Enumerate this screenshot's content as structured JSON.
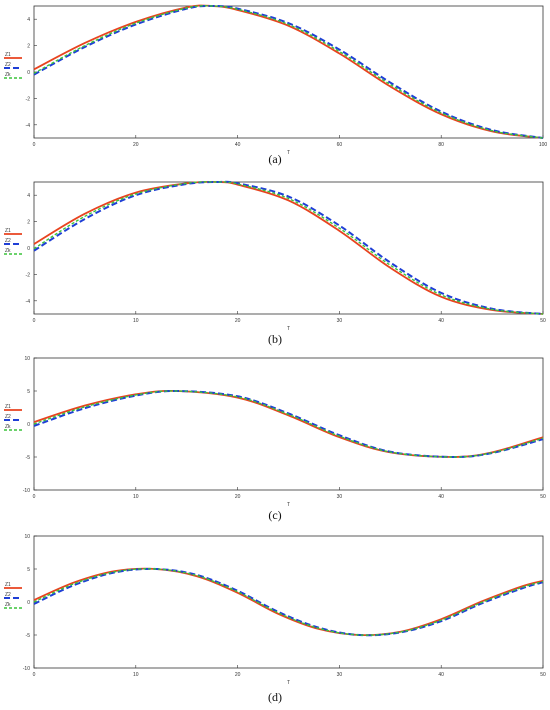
{
  "chart_data": [
    {
      "type": "line",
      "caption": "(a)",
      "xlabel": "T",
      "xlim": [
        0,
        100
      ],
      "ylim": [
        -5,
        5
      ],
      "xticks": [
        "0",
        "20",
        "40",
        "60",
        "80",
        "100"
      ],
      "yticks": [
        "-4",
        "-2",
        "0",
        "2",
        "4"
      ],
      "legend": [
        "Z1",
        "Z2",
        "Zk"
      ],
      "series": [
        {
          "name": "Z1",
          "x": [
            0,
            10,
            20,
            30,
            35,
            40,
            50,
            60,
            70,
            80,
            90,
            100
          ],
          "y": [
            0.2,
            2.2,
            3.8,
            4.9,
            5.0,
            4.7,
            3.5,
            1.4,
            -1.1,
            -3.2,
            -4.5,
            -5.0
          ]
        },
        {
          "name": "Z2",
          "x": [
            0,
            10,
            20,
            30,
            35,
            40,
            50,
            60,
            70,
            80,
            90,
            100
          ],
          "y": [
            -0.2,
            1.9,
            3.6,
            4.8,
            5.0,
            4.8,
            3.7,
            1.7,
            -0.8,
            -3.0,
            -4.4,
            -5.0
          ]
        },
        {
          "name": "Zk",
          "x": [
            0,
            10,
            20,
            30,
            35,
            40,
            50,
            60,
            70,
            80,
            90,
            100
          ],
          "y": [
            -0.1,
            2.0,
            3.7,
            4.85,
            5.0,
            4.75,
            3.6,
            1.55,
            -0.95,
            -3.1,
            -4.45,
            -5.0
          ]
        }
      ]
    },
    {
      "type": "line",
      "caption": "(b)",
      "xlabel": "T",
      "xlim": [
        0,
        50
      ],
      "ylim": [
        -5,
        5
      ],
      "xticks": [
        "0",
        "10",
        "20",
        "30",
        "40",
        "50"
      ],
      "yticks": [
        "-4",
        "-2",
        "0",
        "2",
        "4"
      ],
      "legend": [
        "Z1",
        "Z2",
        "Zk"
      ],
      "series": [
        {
          "name": "Z1",
          "x": [
            0,
            5,
            10,
            15,
            18,
            20,
            25,
            30,
            35,
            40,
            45,
            50
          ],
          "y": [
            0.3,
            2.6,
            4.2,
            4.9,
            5.0,
            4.8,
            3.6,
            1.3,
            -1.5,
            -3.7,
            -4.7,
            -5.0
          ]
        },
        {
          "name": "Z2",
          "x": [
            0,
            5,
            10,
            15,
            18,
            20,
            25,
            30,
            35,
            40,
            45,
            50
          ],
          "y": [
            -0.2,
            2.2,
            4.0,
            4.85,
            5.0,
            4.9,
            3.9,
            1.7,
            -1.1,
            -3.4,
            -4.6,
            -5.0
          ]
        },
        {
          "name": "Zk",
          "x": [
            0,
            5,
            10,
            15,
            18,
            20,
            25,
            30,
            35,
            40,
            45,
            50
          ],
          "y": [
            -0.05,
            2.4,
            4.1,
            4.9,
            5.0,
            4.85,
            3.75,
            1.5,
            -1.3,
            -3.55,
            -4.65,
            -5.0
          ]
        }
      ]
    },
    {
      "type": "line",
      "caption": "(c)",
      "xlabel": "T",
      "xlim": [
        0,
        50
      ],
      "ylim": [
        -10,
        10
      ],
      "xticks": [
        "0",
        "10",
        "20",
        "30",
        "40",
        "50"
      ],
      "yticks": [
        "-10",
        "-5",
        "0",
        "5",
        "10"
      ],
      "legend": [
        "Z1",
        "Z2",
        "Zk"
      ],
      "series": [
        {
          "name": "Z1",
          "x": [
            0,
            5,
            10,
            14,
            20,
            25,
            30,
            35,
            41,
            45,
            50
          ],
          "y": [
            0.3,
            2.8,
            4.5,
            5.0,
            4.0,
            1.3,
            -2.0,
            -4.3,
            -5.0,
            -4.3,
            -2.0
          ]
        },
        {
          "name": "Z2",
          "x": [
            0,
            5,
            10,
            14,
            20,
            25,
            30,
            35,
            41,
            45,
            50
          ],
          "y": [
            -0.3,
            2.4,
            4.3,
            5.0,
            4.2,
            1.6,
            -1.7,
            -4.2,
            -5.0,
            -4.4,
            -2.3
          ]
        },
        {
          "name": "Zk",
          "x": [
            0,
            5,
            10,
            14,
            20,
            25,
            30,
            35,
            41,
            45,
            50
          ],
          "y": [
            0.0,
            2.6,
            4.4,
            5.0,
            4.1,
            1.45,
            -1.85,
            -4.25,
            -5.0,
            -4.35,
            -2.15
          ]
        }
      ]
    },
    {
      "type": "line",
      "caption": "(d)",
      "xlabel": "T",
      "xlim": [
        0,
        50
      ],
      "ylim": [
        -10,
        10
      ],
      "xticks": [
        "0",
        "10",
        "20",
        "30",
        "40",
        "50"
      ],
      "yticks": [
        "-10",
        "-5",
        "0",
        "5",
        "10"
      ],
      "legend": [
        "Z1",
        "Z2",
        "Zk"
      ],
      "series": [
        {
          "name": "Z1",
          "x": [
            0,
            4,
            8,
            12,
            16,
            20,
            24,
            28,
            32,
            36,
            40,
            44,
            48,
            50
          ],
          "y": [
            0.3,
            3.0,
            4.7,
            5.0,
            3.9,
            1.4,
            -1.8,
            -4.1,
            -5.0,
            -4.5,
            -2.6,
            0.1,
            2.4,
            3.2
          ]
        },
        {
          "name": "Z2",
          "x": [
            0,
            4,
            8,
            12,
            16,
            20,
            24,
            28,
            32,
            36,
            40,
            44,
            48,
            50
          ],
          "y": [
            -0.3,
            2.6,
            4.5,
            5.0,
            4.1,
            1.7,
            -1.5,
            -3.9,
            -5.0,
            -4.6,
            -2.9,
            -0.2,
            2.1,
            3.0
          ]
        },
        {
          "name": "Zk",
          "x": [
            0,
            4,
            8,
            12,
            16,
            20,
            24,
            28,
            32,
            36,
            40,
            44,
            48,
            50
          ],
          "y": [
            0.0,
            2.8,
            4.6,
            5.0,
            4.0,
            1.55,
            -1.65,
            -4.0,
            -5.0,
            -4.55,
            -2.75,
            -0.05,
            2.25,
            3.1
          ]
        }
      ]
    }
  ],
  "colors": {
    "Z1": "#e8431f",
    "Z2": "#1f3fd6",
    "Zk": "#3ac43a",
    "axis": "#333333",
    "background": "#ffffff"
  }
}
